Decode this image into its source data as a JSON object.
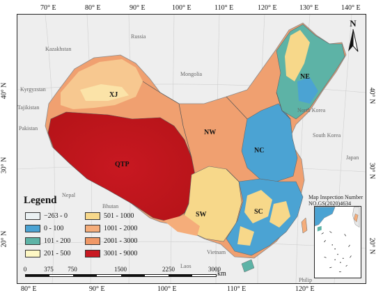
{
  "axes": {
    "top_ticks": [
      "70° E",
      "80° E",
      "90° E",
      "100° E",
      "110° E",
      "120° E",
      "130° E",
      "140° E"
    ],
    "bottom_ticks": [
      "80° E",
      "90° E",
      "100° E",
      "110° E",
      "120° E"
    ],
    "left_ticks": [
      "40° N",
      "30° N",
      "20° N"
    ],
    "right_ticks": [
      "40° N",
      "30° N",
      "20° N"
    ]
  },
  "countries": [
    "Russia",
    "Kazakhstan",
    "Kyrgyzstan",
    "Tajikistan",
    "Mongolia",
    "Pakistan",
    "Nepal",
    "Bhutan",
    "North Korea",
    "South Korea",
    "Japan",
    "Vietnam",
    "Laos",
    "Philip"
  ],
  "regions": [
    "XJ",
    "NW",
    "QTP",
    "NE",
    "NC",
    "SW",
    "SC"
  ],
  "legend": {
    "title": "Legend",
    "items": [
      {
        "label": "−263 - 0",
        "color": "#eaf0f2"
      },
      {
        "label": "0 - 100",
        "color": "#4ba3d3"
      },
      {
        "label": "101 - 200",
        "color": "#5db3a6"
      },
      {
        "label": "201 - 500",
        "color": "#fdf7c4"
      },
      {
        "label": "501 - 1000",
        "color": "#f7d88a"
      },
      {
        "label": "1001 - 2000",
        "color": "#f5ad7a"
      },
      {
        "label": "2001 - 3000",
        "color": "#f09866"
      },
      {
        "label": "3001 - 9000",
        "color": "#c81821"
      }
    ]
  },
  "scale": {
    "labels": [
      "0",
      "375",
      "750",
      "1500",
      "2250",
      "3000"
    ],
    "unit": "km"
  },
  "inspection": {
    "line1": "Map Inspection Number",
    "line2": "NO.GS(2020)4634"
  },
  "north": "N"
}
